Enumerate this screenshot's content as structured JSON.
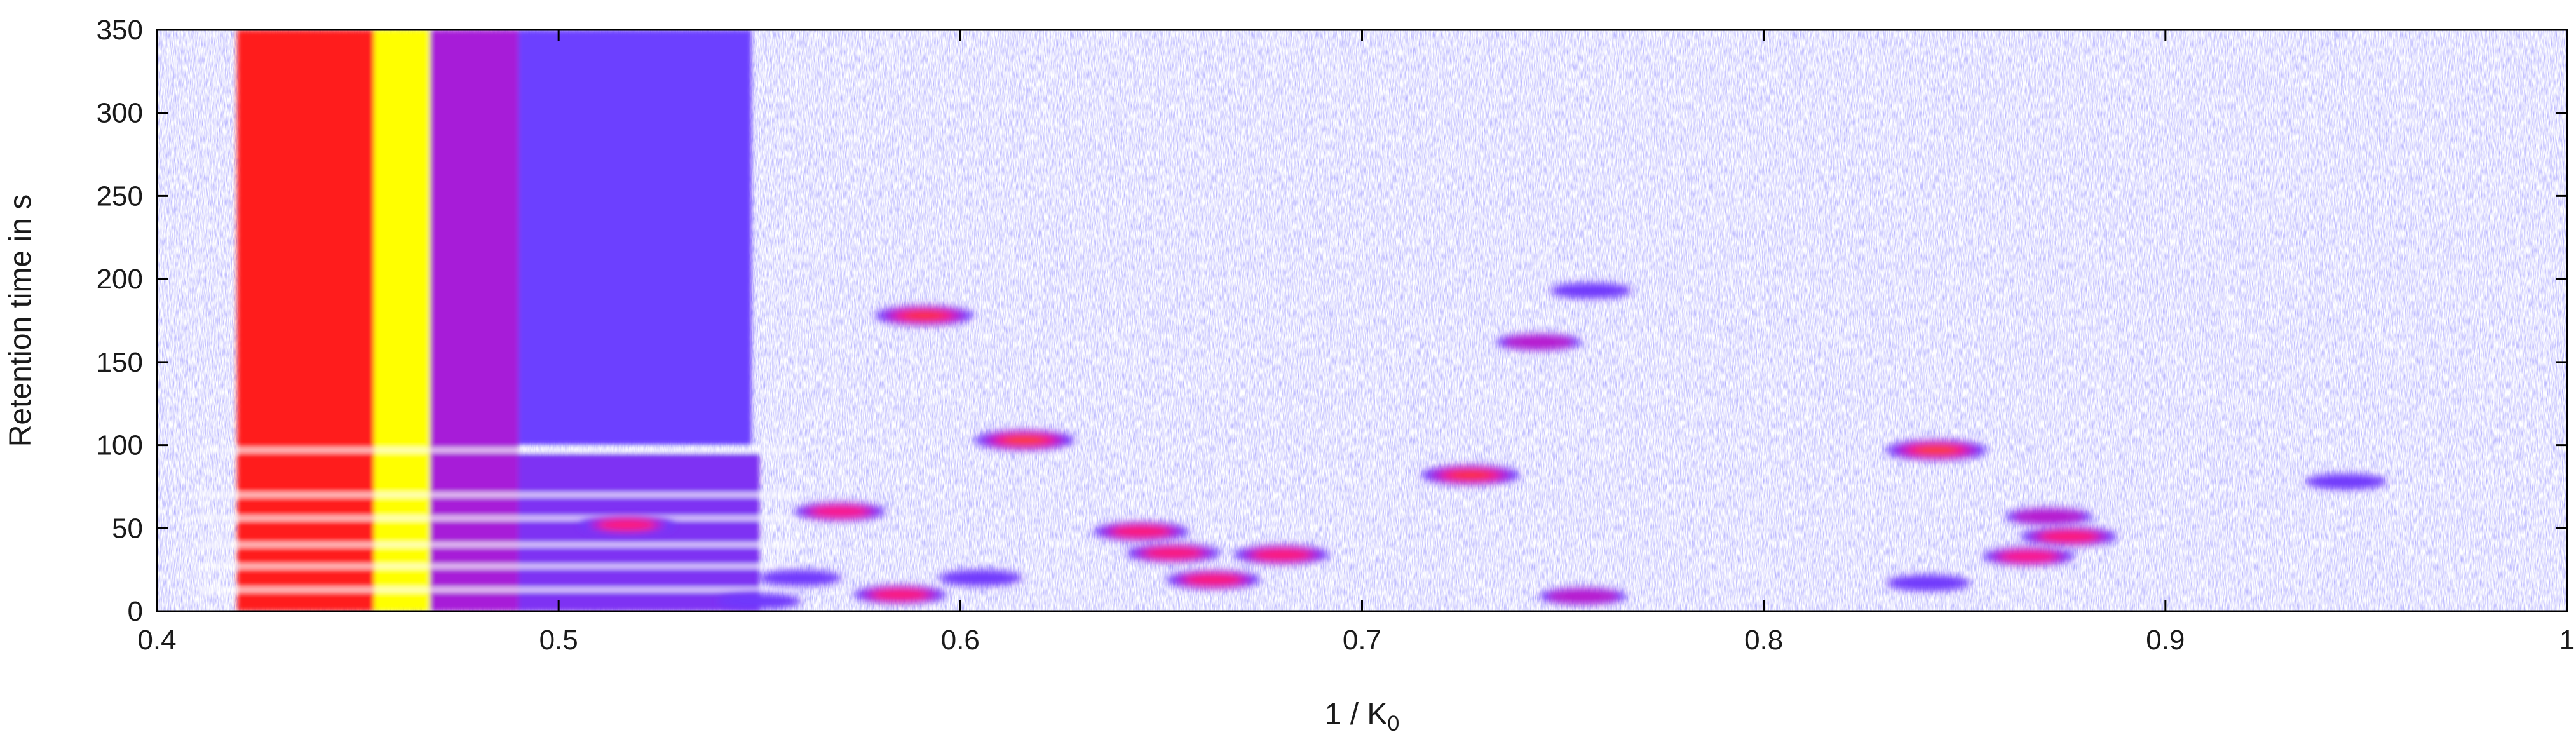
{
  "chart_data": {
    "type": "heatmap",
    "title": "",
    "xlabel": "1 / K",
    "xlabel_subscript": "0",
    "ylabel": "Retention time in s",
    "xlim": [
      0.4,
      1.0
    ],
    "ylim": [
      0,
      350
    ],
    "x_ticks": [
      0.4,
      0.5,
      0.6,
      0.7,
      0.8,
      0.9,
      1.0
    ],
    "x_tick_labels": [
      "0.4",
      "0.5",
      "0.6",
      "0.7",
      "0.8",
      "0.9",
      "1"
    ],
    "y_ticks": [
      0,
      50,
      100,
      150,
      200,
      250,
      300,
      350
    ],
    "y_tick_labels": [
      "0",
      "50",
      "100",
      "150",
      "200",
      "250",
      "300",
      "350"
    ],
    "grid": false,
    "legend": "none",
    "colormap": [
      "#ffffff",
      "#c9c7ff",
      "#6a3cff",
      "#9b1fe0",
      "#ff1aa0",
      "#ff1a1a",
      "#ffff00"
    ],
    "bands": [
      {
        "x_from": 0.42,
        "x_to": 0.455,
        "y_from": 0,
        "y_to": 350,
        "intensity": 0.83
      },
      {
        "x_from": 0.454,
        "x_to": 0.468,
        "y_from": 0,
        "y_to": 350,
        "intensity": 1.0
      },
      {
        "x_from": 0.468,
        "x_to": 0.49,
        "y_from": 0,
        "y_to": 350,
        "intensity": 0.52
      },
      {
        "x_from": 0.49,
        "x_to": 0.548,
        "y_from": 100,
        "y_to": 350,
        "intensity": 0.33
      },
      {
        "x_from": 0.49,
        "x_to": 0.55,
        "y_from": 0,
        "y_to": 95,
        "intensity": 0.4
      }
    ],
    "peaks": [
      {
        "x": 0.591,
        "y": 178,
        "intensity": 0.85
      },
      {
        "x": 0.616,
        "y": 103,
        "intensity": 0.88
      },
      {
        "x": 0.57,
        "y": 60,
        "intensity": 0.7
      },
      {
        "x": 0.517,
        "y": 52,
        "intensity": 0.75
      },
      {
        "x": 0.645,
        "y": 48,
        "intensity": 0.78
      },
      {
        "x": 0.653,
        "y": 35,
        "intensity": 0.75
      },
      {
        "x": 0.68,
        "y": 34,
        "intensity": 0.78
      },
      {
        "x": 0.663,
        "y": 19,
        "intensity": 0.75
      },
      {
        "x": 0.585,
        "y": 10,
        "intensity": 0.72
      },
      {
        "x": 0.727,
        "y": 82,
        "intensity": 0.85
      },
      {
        "x": 0.744,
        "y": 162,
        "intensity": 0.55
      },
      {
        "x": 0.757,
        "y": 193,
        "intensity": 0.45
      },
      {
        "x": 0.843,
        "y": 97,
        "intensity": 0.9
      },
      {
        "x": 0.945,
        "y": 78,
        "intensity": 0.45
      },
      {
        "x": 0.871,
        "y": 57,
        "intensity": 0.6
      },
      {
        "x": 0.876,
        "y": 45,
        "intensity": 0.8
      },
      {
        "x": 0.866,
        "y": 33,
        "intensity": 0.7
      },
      {
        "x": 0.755,
        "y": 9,
        "intensity": 0.6
      },
      {
        "x": 0.841,
        "y": 17,
        "intensity": 0.5
      },
      {
        "x": 0.605,
        "y": 20,
        "intensity": 0.5
      },
      {
        "x": 0.56,
        "y": 20,
        "intensity": 0.5
      },
      {
        "x": 0.55,
        "y": 6,
        "intensity": 0.5
      }
    ]
  }
}
